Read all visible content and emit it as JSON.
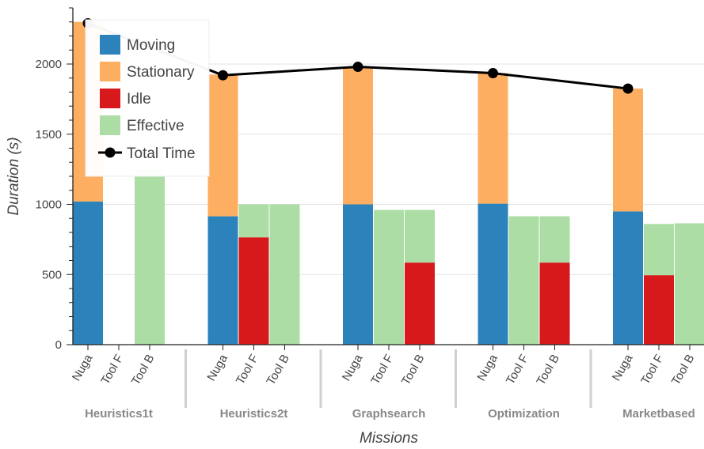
{
  "chart_data": {
    "type": "bar",
    "title": "",
    "xlabel": "Missions",
    "ylabel": "Duration (s)",
    "ylim": [
      0,
      2400
    ],
    "yticks": [
      0,
      500,
      1000,
      1500,
      2000
    ],
    "grid": true,
    "legend_position": "top-left",
    "groups": [
      "Heuristics1t",
      "Heuristics2t",
      "Graphsearch",
      "Optimization",
      "Marketbased"
    ],
    "agents": [
      "Nuga",
      "Tool F",
      "Tool B"
    ],
    "series": [
      {
        "name": "Moving",
        "color": "#2c83bb",
        "values": [
          [
            1020,
            0,
            0
          ],
          [
            915,
            0,
            0
          ],
          [
            1000,
            0,
            0
          ],
          [
            1005,
            0,
            0
          ],
          [
            950,
            0,
            0
          ]
        ]
      },
      {
        "name": "Stationary",
        "color": "#fdae61",
        "values": [
          [
            1280,
            0,
            0
          ],
          [
            1010,
            0,
            0
          ],
          [
            975,
            0,
            0
          ],
          [
            930,
            0,
            0
          ],
          [
            875,
            0,
            0
          ]
        ]
      },
      {
        "name": "Idle",
        "color": "#d7191c",
        "values": [
          [
            0,
            0,
            0
          ],
          [
            0,
            765,
            0
          ],
          [
            0,
            0,
            585
          ],
          [
            0,
            0,
            585
          ],
          [
            0,
            495,
            0
          ]
        ]
      },
      {
        "name": "Effective",
        "color": "#abdda4",
        "values": [
          [
            0,
            0,
            1250
          ],
          [
            0,
            235,
            1000
          ],
          [
            0,
            960,
            375
          ],
          [
            0,
            915,
            330
          ],
          [
            0,
            365,
            865
          ]
        ]
      }
    ],
    "line": {
      "name": "Total Time",
      "color": "#000000",
      "values": [
        2290,
        1920,
        1980,
        1935,
        1825
      ]
    }
  }
}
